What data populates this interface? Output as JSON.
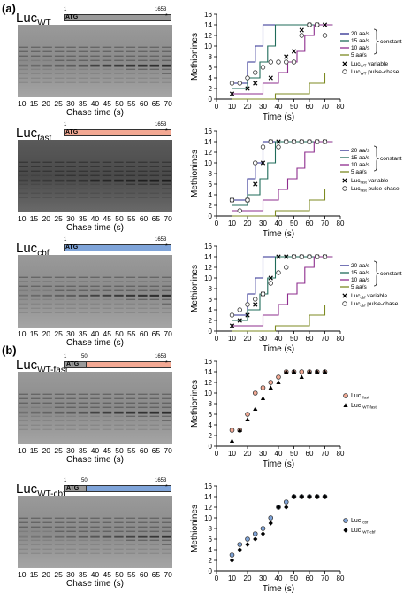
{
  "panel_labels": [
    "(a)",
    "(b)"
  ],
  "constructs": [
    {
      "name": "Luc",
      "sub": "WT",
      "fill": "#9a9a9a"
    },
    {
      "name": "Luc",
      "sub": "fast",
      "fill": "#f3a994"
    },
    {
      "name": "Luc",
      "sub": "cbf",
      "fill": "#7fa4d9"
    },
    {
      "name": "Luc",
      "sub": "WT-fast",
      "fill": "#f3a994"
    },
    {
      "name": "Luc",
      "sub": "WT-cbf",
      "fill": "#7fa4d9"
    }
  ],
  "gene": {
    "atg": "ATG",
    "start": "1",
    "end": "1653",
    "mid": "50",
    "stop": "*"
  },
  "lanes": [
    "10",
    "15",
    "20",
    "25",
    "30",
    "35",
    "40",
    "45",
    "50",
    "55",
    "60",
    "65",
    "70"
  ],
  "chase_label": "Chase time (s)",
  "legend": {
    "constant_rates": [
      "20 aa/s",
      "15 aa/s",
      "10 aa/s",
      "5 aa/s"
    ],
    "constant": "constant",
    "variable": "variable",
    "pulse_chase": "pulse-chase"
  },
  "colors": {
    "r20": "#2b2b8f",
    "r15": "#1f6b5a",
    "r10": "#8e2d8e",
    "r5": "#7d8a22",
    "pink": "#f3a994",
    "blue": "#7fa4d9"
  },
  "chart_data": [
    {
      "type": "line",
      "xlabel": "Time (s)",
      "ylabel": "Methionines",
      "xlim": [
        0,
        80
      ],
      "ylim": [
        0,
        16
      ],
      "xticks": [
        0,
        10,
        20,
        30,
        40,
        50,
        60,
        70,
        80
      ],
      "yticks": [
        0,
        2,
        4,
        6,
        8,
        10,
        12,
        14,
        16
      ],
      "steps": {
        "r20": [
          [
            10,
            3
          ],
          [
            20,
            3
          ],
          [
            20,
            7
          ],
          [
            25,
            7
          ],
          [
            25,
            10
          ],
          [
            30,
            10
          ],
          [
            30,
            14
          ],
          [
            75,
            14
          ]
        ],
        "r15": [
          [
            10,
            2
          ],
          [
            20,
            2
          ],
          [
            20,
            4
          ],
          [
            28,
            4
          ],
          [
            28,
            7
          ],
          [
            33,
            7
          ],
          [
            33,
            10
          ],
          [
            38,
            10
          ],
          [
            38,
            14
          ],
          [
            75,
            14
          ]
        ],
        "r10": [
          [
            10,
            1
          ],
          [
            30,
            1
          ],
          [
            30,
            3
          ],
          [
            40,
            3
          ],
          [
            40,
            5
          ],
          [
            46,
            5
          ],
          [
            46,
            7
          ],
          [
            52,
            7
          ],
          [
            52,
            9
          ],
          [
            57,
            9
          ],
          [
            57,
            12
          ],
          [
            63,
            12
          ],
          [
            63,
            14
          ],
          [
            75,
            14
          ]
        ],
        "r5": [
          [
            10,
            0
          ],
          [
            38,
            0
          ],
          [
            38,
            1
          ],
          [
            60,
            1
          ],
          [
            60,
            3
          ],
          [
            70,
            3
          ],
          [
            70,
            5
          ]
        ]
      },
      "series": [
        {
          "name": "Luc WT variable",
          "marker": "x",
          "x": [
            10,
            20,
            25,
            35,
            45,
            50,
            55,
            60,
            65,
            70
          ],
          "y": [
            1,
            2,
            3,
            4,
            8,
            9,
            13,
            14,
            14,
            14
          ]
        },
        {
          "name": "Luc WT pulse-chase",
          "marker": "circle",
          "x": [
            10,
            15,
            20,
            25,
            30,
            35,
            40,
            45,
            50,
            55,
            60,
            65,
            70
          ],
          "y": [
            3,
            3,
            4,
            5,
            6,
            7,
            7,
            7,
            7,
            12,
            14,
            14,
            12
          ]
        }
      ]
    },
    {
      "type": "line",
      "xlabel": "Time (s)",
      "ylabel": "Methionines",
      "xlim": [
        0,
        80
      ],
      "ylim": [
        0,
        16
      ],
      "xticks": [
        0,
        10,
        20,
        30,
        40,
        50,
        60,
        70,
        80
      ],
      "yticks": [
        0,
        2,
        4,
        6,
        8,
        10,
        12,
        14,
        16
      ],
      "steps": {
        "r20": [
          [
            10,
            3
          ],
          [
            20,
            3
          ],
          [
            20,
            7
          ],
          [
            25,
            7
          ],
          [
            25,
            10
          ],
          [
            30,
            10
          ],
          [
            30,
            14
          ],
          [
            75,
            14
          ]
        ],
        "r15": [
          [
            10,
            2
          ],
          [
            20,
            2
          ],
          [
            20,
            4
          ],
          [
            28,
            4
          ],
          [
            28,
            7
          ],
          [
            33,
            7
          ],
          [
            33,
            10
          ],
          [
            38,
            10
          ],
          [
            38,
            14
          ],
          [
            75,
            14
          ]
        ],
        "r10": [
          [
            10,
            1
          ],
          [
            30,
            1
          ],
          [
            30,
            3
          ],
          [
            40,
            3
          ],
          [
            40,
            5
          ],
          [
            46,
            5
          ],
          [
            46,
            7
          ],
          [
            52,
            7
          ],
          [
            52,
            9
          ],
          [
            57,
            9
          ],
          [
            57,
            12
          ],
          [
            63,
            12
          ],
          [
            63,
            14
          ],
          [
            75,
            14
          ]
        ],
        "r5": [
          [
            10,
            0
          ],
          [
            38,
            0
          ],
          [
            38,
            1
          ],
          [
            60,
            1
          ],
          [
            60,
            3
          ],
          [
            70,
            3
          ],
          [
            70,
            5
          ]
        ]
      },
      "series": [
        {
          "name": "Luc fast variable",
          "marker": "x",
          "x": [
            10,
            20,
            25,
            30,
            35,
            40,
            45,
            50,
            55,
            60,
            65,
            70
          ],
          "y": [
            3,
            3,
            6,
            10,
            14,
            14,
            14,
            14,
            14,
            14,
            14,
            14
          ]
        },
        {
          "name": "Luc fast pulse-chase",
          "marker": "circle",
          "x": [
            10,
            15,
            20,
            25,
            30,
            35,
            40,
            45,
            50,
            55,
            60,
            65,
            70
          ],
          "y": [
            3,
            1,
            3,
            10,
            13,
            14,
            13,
            14,
            14,
            14,
            14,
            14,
            14
          ]
        }
      ]
    },
    {
      "type": "line",
      "xlabel": "Time (s)",
      "ylabel": "Methionines",
      "xlim": [
        0,
        80
      ],
      "ylim": [
        0,
        16
      ],
      "xticks": [
        0,
        10,
        20,
        30,
        40,
        50,
        60,
        70,
        80
      ],
      "yticks": [
        0,
        2,
        4,
        6,
        8,
        10,
        12,
        14,
        16
      ],
      "steps": {
        "r20": [
          [
            10,
            3
          ],
          [
            20,
            3
          ],
          [
            20,
            7
          ],
          [
            25,
            7
          ],
          [
            25,
            10
          ],
          [
            30,
            10
          ],
          [
            30,
            14
          ],
          [
            75,
            14
          ]
        ],
        "r15": [
          [
            10,
            2
          ],
          [
            20,
            2
          ],
          [
            20,
            4
          ],
          [
            28,
            4
          ],
          [
            28,
            7
          ],
          [
            33,
            7
          ],
          [
            33,
            10
          ],
          [
            38,
            10
          ],
          [
            38,
            14
          ],
          [
            75,
            14
          ]
        ],
        "r10": [
          [
            10,
            1
          ],
          [
            30,
            1
          ],
          [
            30,
            3
          ],
          [
            40,
            3
          ],
          [
            40,
            5
          ],
          [
            46,
            5
          ],
          [
            46,
            7
          ],
          [
            52,
            7
          ],
          [
            52,
            9
          ],
          [
            57,
            9
          ],
          [
            57,
            12
          ],
          [
            63,
            12
          ],
          [
            63,
            14
          ],
          [
            75,
            14
          ]
        ],
        "r5": [
          [
            10,
            0
          ],
          [
            38,
            0
          ],
          [
            38,
            1
          ],
          [
            60,
            1
          ],
          [
            60,
            3
          ],
          [
            70,
            3
          ],
          [
            70,
            5
          ]
        ]
      },
      "series": [
        {
          "name": "Luc cbf variable",
          "marker": "x",
          "x": [
            10,
            15,
            20,
            25,
            30,
            35,
            40,
            45,
            50,
            55,
            60,
            65,
            70
          ],
          "y": [
            1,
            2,
            3,
            5,
            7,
            10,
            14,
            14,
            14,
            14,
            14,
            14,
            14
          ]
        },
        {
          "name": "Luc cbf pulse-chase",
          "marker": "circle",
          "x": [
            10,
            15,
            20,
            25,
            30,
            35,
            40,
            45,
            50,
            55,
            60,
            65,
            70
          ],
          "y": [
            3,
            4,
            5,
            6,
            7,
            9,
            11,
            12,
            14,
            14,
            14,
            14,
            14
          ]
        }
      ]
    },
    {
      "type": "scatter",
      "xlabel": "Time (s)",
      "ylabel": "Methionines",
      "xlim": [
        0,
        80
      ],
      "ylim": [
        0,
        16
      ],
      "xticks": [
        0,
        10,
        20,
        30,
        40,
        50,
        60,
        70,
        80
      ],
      "yticks": [
        0,
        2,
        4,
        6,
        8,
        10,
        12,
        14,
        16
      ],
      "legend": [
        {
          "label": "Luc",
          "sub": "fast",
          "marker": "circle-pink"
        },
        {
          "label": "Luc",
          "sub": "WT-fast",
          "marker": "triangle"
        }
      ],
      "series": [
        {
          "name": "Luc fast",
          "marker": "circle-pink",
          "x": [
            10,
            15,
            20,
            25,
            30,
            35,
            40,
            45,
            50,
            55,
            60,
            65,
            70
          ],
          "y": [
            3,
            3,
            6,
            10,
            11,
            12,
            13,
            14,
            14,
            14,
            14,
            14,
            14
          ]
        },
        {
          "name": "Luc WT-fast",
          "marker": "triangle",
          "x": [
            10,
            15,
            20,
            25,
            30,
            35,
            40,
            45,
            50,
            55,
            60,
            65,
            70
          ],
          "y": [
            1,
            3,
            5,
            7,
            9,
            11,
            12,
            14,
            14,
            13,
            14,
            14,
            14
          ]
        }
      ]
    },
    {
      "type": "scatter",
      "xlabel": "Time (s)",
      "ylabel": "Methionines",
      "xlim": [
        0,
        80
      ],
      "ylim": [
        0,
        16
      ],
      "xticks": [
        0,
        10,
        20,
        30,
        40,
        50,
        60,
        70,
        80
      ],
      "yticks": [
        0,
        2,
        4,
        6,
        8,
        10,
        12,
        14,
        16
      ],
      "legend": [
        {
          "label": "Luc",
          "sub": "cbf",
          "marker": "circle-blue"
        },
        {
          "label": "Luc",
          "sub": "WT-cbf",
          "marker": "diamond"
        }
      ],
      "series": [
        {
          "name": "Luc cbf",
          "marker": "circle-blue",
          "x": [
            10,
            15,
            20,
            25,
            30,
            35,
            40,
            45,
            50,
            55,
            60,
            65,
            70
          ],
          "y": [
            3,
            5,
            6,
            7,
            8,
            10,
            12,
            13,
            14,
            14,
            14,
            14,
            14
          ]
        },
        {
          "name": "Luc WT-cbf",
          "marker": "diamond",
          "x": [
            10,
            15,
            20,
            25,
            30,
            35,
            40,
            45,
            50,
            55,
            60,
            65,
            70
          ],
          "y": [
            2,
            4,
            5,
            6,
            7,
            9,
            12,
            12,
            14,
            14,
            14,
            14,
            14
          ]
        }
      ]
    }
  ]
}
